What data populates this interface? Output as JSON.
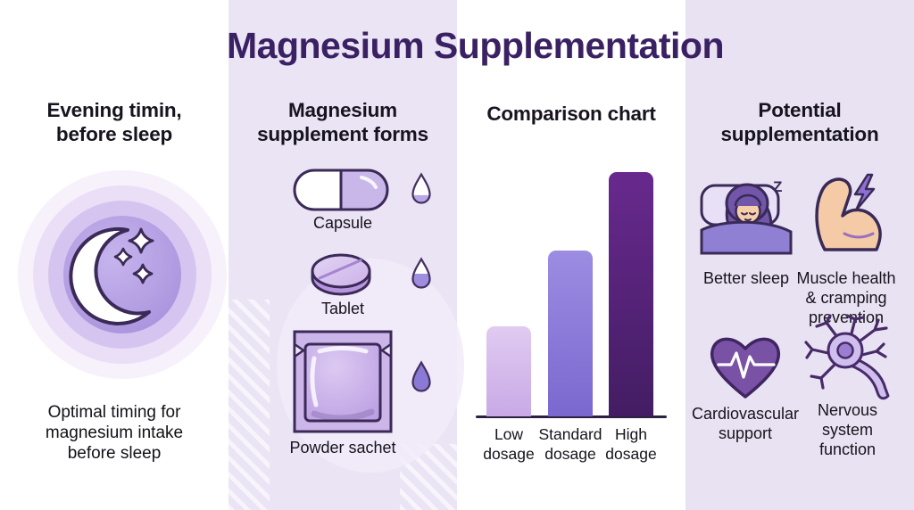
{
  "infographic": {
    "title": "Magnesium Supplementation"
  },
  "colors": {
    "title_text": "#3a2163",
    "heading_text": "#17141f",
    "body_text": "#16131c",
    "outline_dark_purple": "#3b2a57",
    "panel_lavender": "#ebe4f5",
    "panel_lavender_alt": "#e9e2f3",
    "panel_white": "#ffffff"
  },
  "sections": {
    "evening_timing": {
      "header_lines": [
        "Evening timin,",
        "before sleep"
      ],
      "icon": "crescent-moon-stars-icon",
      "caption_lines": [
        "Optimal timing for",
        "magnesium intake",
        "before sleep"
      ]
    },
    "supplement_forms": {
      "header_lines": [
        "Magnesium",
        "supplement forms"
      ],
      "items": [
        {
          "label": "Capsule",
          "icon": "capsule-icon",
          "droplet_fill": "low"
        },
        {
          "label": "Tablet",
          "icon": "tablet-icon",
          "droplet_fill": "half"
        },
        {
          "label": "Powder sachet",
          "icon": "powder-sachet-icon",
          "droplet_fill": "full"
        }
      ]
    },
    "comparison": {
      "header_lines": [
        "Comparison chart"
      ]
    },
    "benefits": {
      "header_lines": [
        "Potential",
        "supplementation"
      ],
      "items": [
        {
          "icon": "sleeping-person-icon",
          "label_lines": [
            "Better sleep"
          ],
          "zzz_letters": [
            "z",
            "Z",
            "z"
          ]
        },
        {
          "icon": "flexed-arm-lightning-icon",
          "label_lines": [
            "Muscle health",
            "& cramping",
            "prevention"
          ]
        },
        {
          "icon": "heart-ekg-icon",
          "label_lines": [
            "Cardiovascular",
            "support"
          ]
        },
        {
          "icon": "neuron-icon",
          "label_lines": [
            "Nervous",
            "system",
            "function"
          ]
        }
      ]
    }
  },
  "chart_data": {
    "type": "bar",
    "title": "Comparison chart",
    "categories": [
      "Low dosage",
      "Standard dosage",
      "High dosage"
    ],
    "values": [
      37,
      68,
      100
    ],
    "value_unit": "relative bar height, % of tallest bar (no numeric axis shown)",
    "bar_gradients": [
      [
        "#e0cbf1",
        "#c9a9e6"
      ],
      [
        "#9c8de2",
        "#7b68cf"
      ],
      [
        "#68298e",
        "#431d63"
      ]
    ],
    "xlabel": "",
    "ylabel": "",
    "grid": false,
    "legend": false,
    "axis_line_color": "#2b2040"
  }
}
